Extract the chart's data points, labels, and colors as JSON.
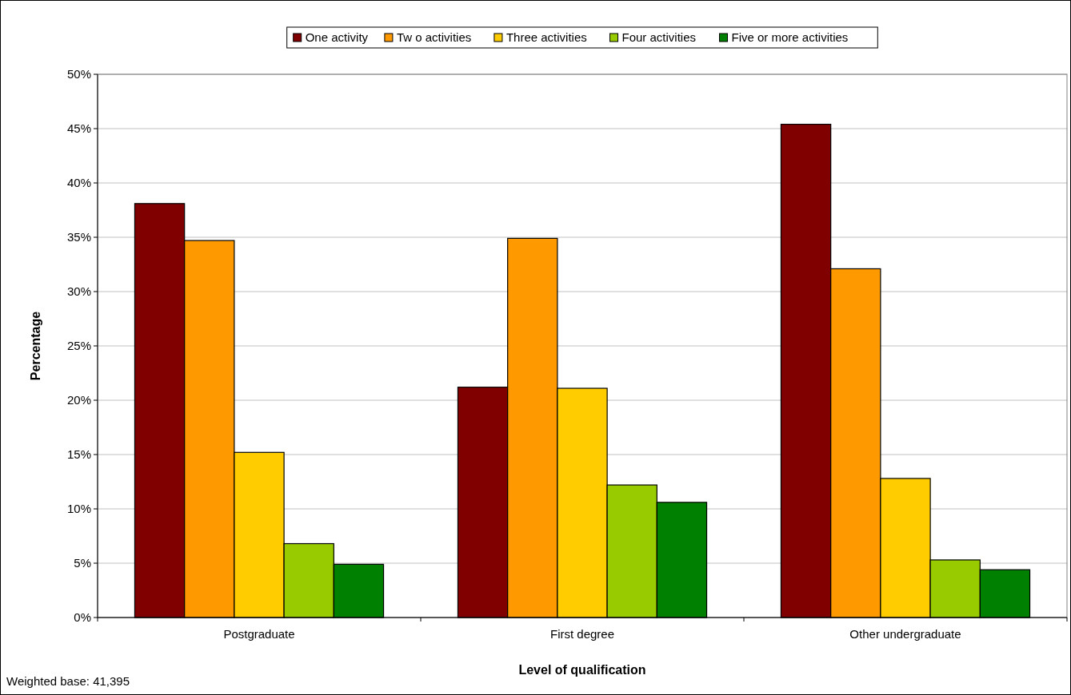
{
  "chart_data": {
    "type": "bar",
    "xlabel": "Level of qualification",
    "ylabel": "Percentage",
    "categories": [
      "Postgraduate",
      "First degree",
      "Other undergraduate"
    ],
    "series": [
      {
        "name": "One activity",
        "color": "#800000",
        "values": [
          38.1,
          21.2,
          45.4
        ]
      },
      {
        "name": "Tw o activities",
        "color": "#ff9900",
        "values": [
          34.7,
          34.9,
          32.1
        ]
      },
      {
        "name": "Three activities",
        "color": "#ffcc00",
        "values": [
          15.2,
          21.1,
          12.8
        ]
      },
      {
        "name": "Four activities",
        "color": "#99cc00",
        "values": [
          6.8,
          12.2,
          5.3
        ]
      },
      {
        "name": "Five or more activities",
        "color": "#008000",
        "values": [
          4.9,
          10.6,
          4.4
        ]
      }
    ],
    "ylim": [
      0,
      50
    ],
    "yticks": [
      {
        "value": 0,
        "label": "0%"
      },
      {
        "value": 5,
        "label": "5%"
      },
      {
        "value": 10,
        "label": "10%"
      },
      {
        "value": 15,
        "label": "15%"
      },
      {
        "value": 20,
        "label": "20%"
      },
      {
        "value": 25,
        "label": "25%"
      },
      {
        "value": 30,
        "label": "30%"
      },
      {
        "value": 35,
        "label": "35%"
      },
      {
        "value": 40,
        "label": "40%"
      },
      {
        "value": 45,
        "label": "45%"
      },
      {
        "value": 50,
        "label": "50%"
      }
    ],
    "grid": "y",
    "legend": "top",
    "annotations": [
      "Weighted base: 41,395"
    ]
  }
}
